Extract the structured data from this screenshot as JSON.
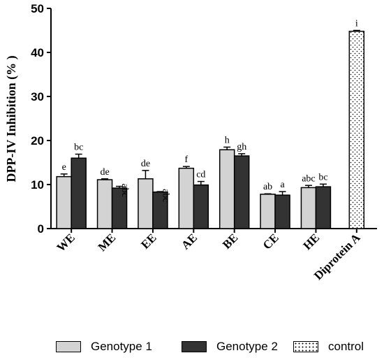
{
  "chart_data": {
    "type": "bar",
    "ylabel": "DPP-IV Inhibition (% )",
    "ylim": [
      0,
      50
    ],
    "yticks": [
      0,
      10,
      20,
      30,
      40,
      50
    ],
    "categories": [
      "WE",
      "ME",
      "EE",
      "AE",
      "BE",
      "CE",
      "HE",
      "Diprotein A"
    ],
    "series": [
      {
        "name": "Genotype 1",
        "color": "#d3d3d3",
        "values": [
          11.8,
          11.1,
          11.3,
          13.7,
          17.9,
          7.8,
          9.3,
          null
        ],
        "errors": [
          0.6,
          0.2,
          1.9,
          0.4,
          0.6,
          0.1,
          0.5,
          null
        ],
        "labels": [
          "e",
          "de",
          "de",
          "f",
          "h",
          "ab",
          "abc",
          null
        ]
      },
      {
        "name": "Genotype 2",
        "color": "#333333",
        "values": [
          16.0,
          9.2,
          8.3,
          9.9,
          16.5,
          7.6,
          9.5,
          null
        ],
        "errors": [
          0.9,
          0.4,
          0.1,
          0.8,
          0.5,
          0.8,
          0.6,
          null
        ],
        "labels": [
          "bc",
          "abc",
          "abc",
          "cd",
          "gh",
          "a",
          "bc",
          null
        ]
      },
      {
        "name": "control",
        "color": "#ffffff",
        "pattern": "dotted",
        "values": [
          null,
          null,
          null,
          null,
          null,
          null,
          null,
          44.8
        ],
        "errors": [
          null,
          null,
          null,
          null,
          null,
          null,
          null,
          0.2
        ],
        "labels": [
          null,
          null,
          null,
          null,
          null,
          null,
          null,
          "i"
        ]
      }
    ]
  }
}
